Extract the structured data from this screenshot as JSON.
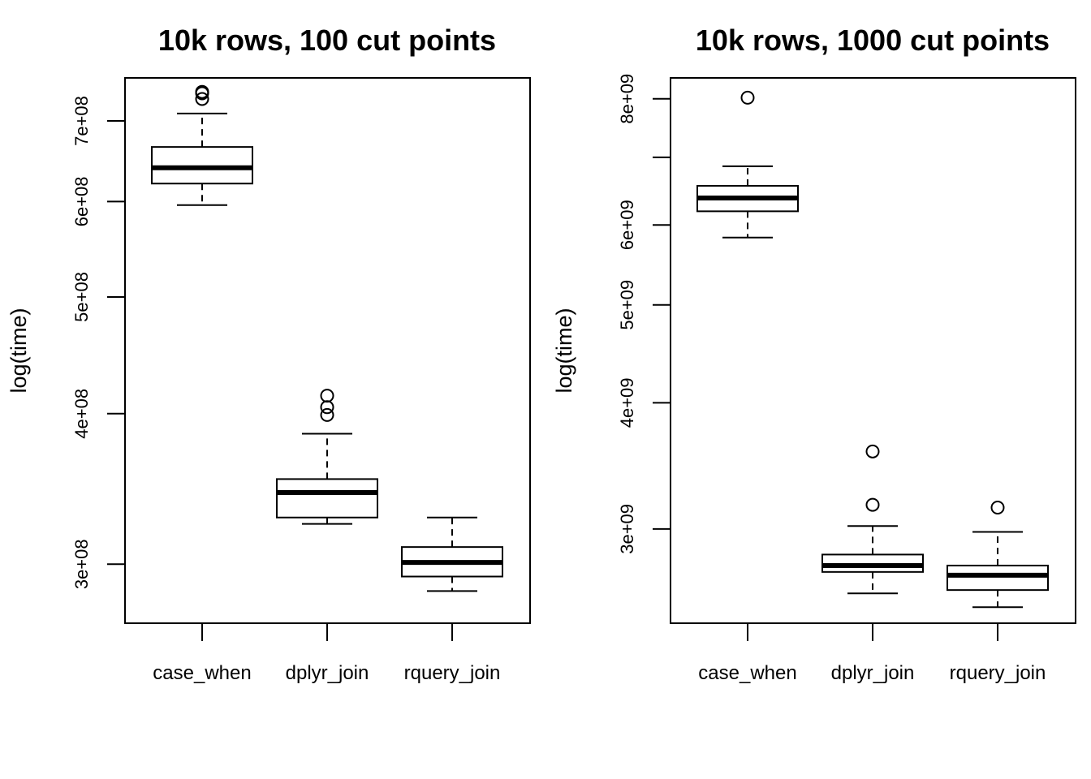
{
  "chart_data": [
    {
      "type": "box",
      "title": "10k rows, 100 cut points",
      "ylabel": "log(time)",
      "yscale": "log",
      "ylim": [
        268000000,
        760000000
      ],
      "yticks": [
        300000000,
        400000000,
        500000000,
        600000000,
        700000000
      ],
      "ytick_labels": [
        "3e+08",
        "4e+08",
        "5e+08",
        "6e+08",
        "7e+08"
      ],
      "categories": [
        "case_when",
        "dplyr_join",
        "rquery_join"
      ],
      "boxes": [
        {
          "name": "case_when",
          "whisker_low": 596000000,
          "q1": 621000000,
          "median": 640000000,
          "q3": 666000000,
          "whisker_high": 710000000,
          "outliers": [
            730000000,
            738000000,
            740000000
          ]
        },
        {
          "name": "dplyr_join",
          "whisker_low": 324000000,
          "q1": 328000000,
          "median": 344000000,
          "q3": 353000000,
          "whisker_high": 385000000,
          "outliers": [
            399000000,
            405000000,
            414000000
          ]
        },
        {
          "name": "rquery_join",
          "whisker_low": 285000000,
          "q1": 293000000,
          "median": 301000000,
          "q3": 310000000,
          "whisker_high": 328000000,
          "outliers": []
        }
      ]
    },
    {
      "type": "box",
      "title": "10k rows, 1000 cut points",
      "ylabel": "log(time)",
      "yscale": "log",
      "ylim": [
        2420000000,
        8390000000
      ],
      "yticks": [
        3000000000,
        4000000000,
        5000000000,
        6000000000,
        7000000000,
        8000000000
      ],
      "ytick_labels": [
        "3e+09",
        "4e+09",
        "5e+09",
        "6e+09",
        "",
        "8e+09"
      ],
      "categories": [
        "case_when",
        "dplyr_join",
        "rquery_join"
      ],
      "boxes": [
        {
          "name": "case_when",
          "whisker_low": 5830000000,
          "q1": 6190000000,
          "median": 6380000000,
          "q3": 6560000000,
          "whisker_high": 6860000000,
          "outliers": [
            8020000000
          ]
        },
        {
          "name": "dplyr_join",
          "whisker_low": 2590000000,
          "q1": 2720000000,
          "median": 2760000000,
          "q3": 2830000000,
          "whisker_high": 3020000000,
          "outliers": [
            3170000000,
            3580000000
          ]
        },
        {
          "name": "rquery_join",
          "whisker_low": 2510000000,
          "q1": 2610000000,
          "median": 2700000000,
          "q3": 2760000000,
          "whisker_high": 2980000000,
          "outliers": [
            3150000000
          ]
        }
      ]
    }
  ]
}
